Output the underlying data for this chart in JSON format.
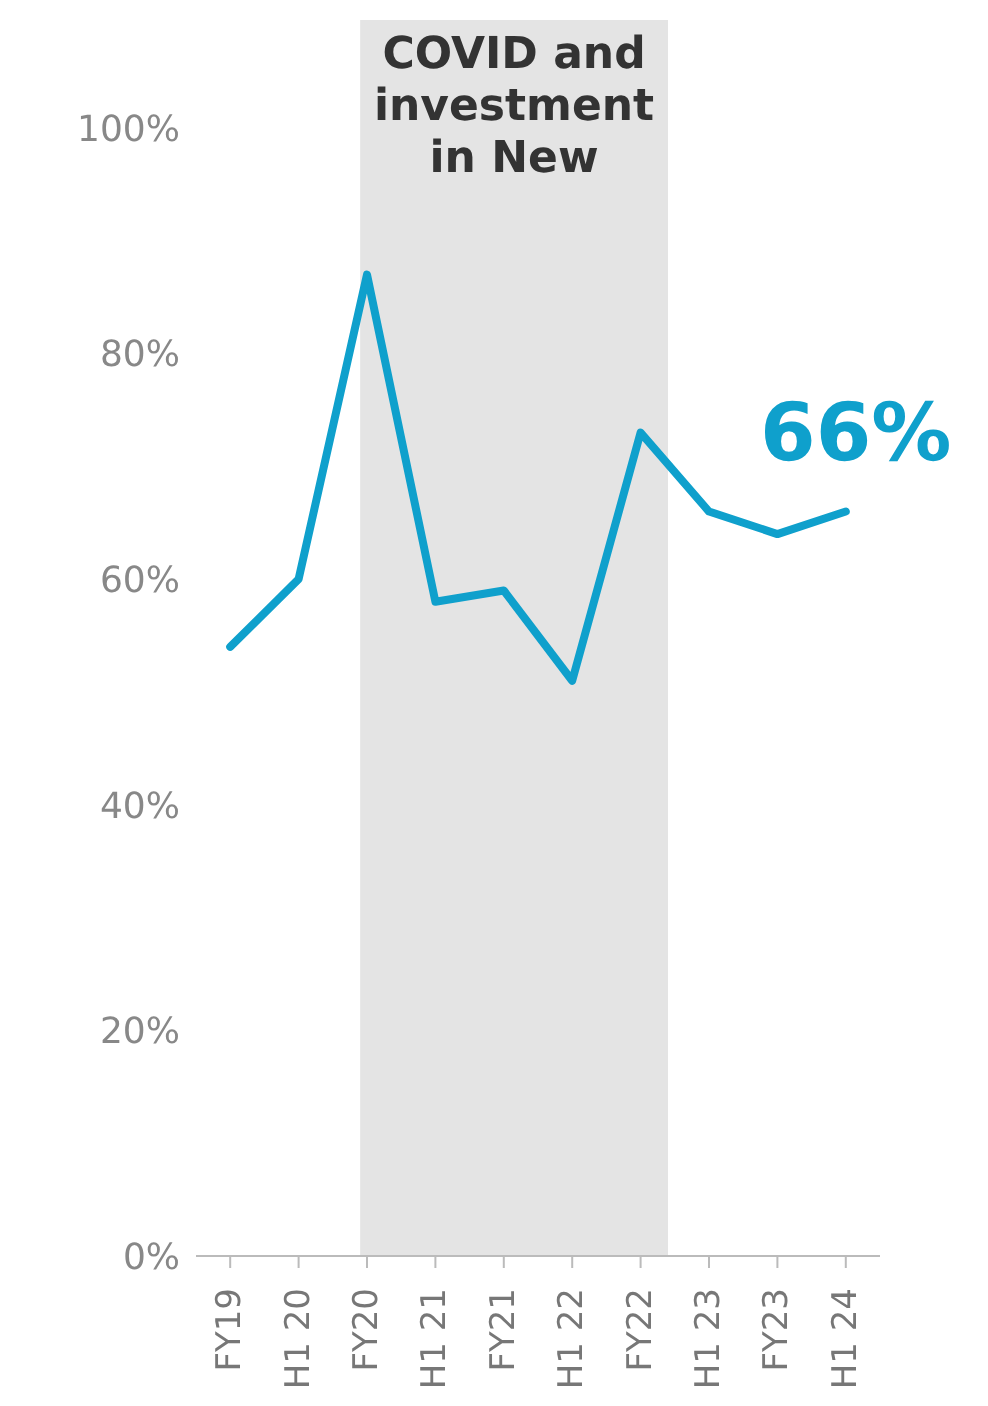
{
  "chart_data": {
    "type": "line",
    "categories": [
      "FY19",
      "H1 20",
      "FY20",
      "H1 21",
      "FY21",
      "H1 22",
      "FY22",
      "H1 23",
      "FY23",
      "H1 24"
    ],
    "series": [
      {
        "color": "#0fa0cc",
        "values": [
          54,
          60,
          87,
          58,
          59,
          51,
          73,
          66,
          64,
          66
        ]
      }
    ],
    "ylim": [
      0,
      100
    ],
    "yticks": [
      {
        "value": 0,
        "label": "0%"
      },
      {
        "value": 20,
        "label": "20%"
      },
      {
        "value": 40,
        "label": "40%"
      },
      {
        "value": 60,
        "label": "60%"
      },
      {
        "value": 80,
        "label": "80%"
      },
      {
        "value": 100,
        "label": "100%"
      }
    ],
    "bands": [
      {
        "axis": "x",
        "from": "FY20",
        "to": "FY22",
        "label": "COVID and investment in New",
        "color": "#e4e4e4"
      }
    ],
    "annotations": [
      {
        "text": "66%",
        "x": "H1 24",
        "y": 66
      }
    ],
    "grid": false,
    "legend": false,
    "marker": "none",
    "line_style": "solid"
  }
}
